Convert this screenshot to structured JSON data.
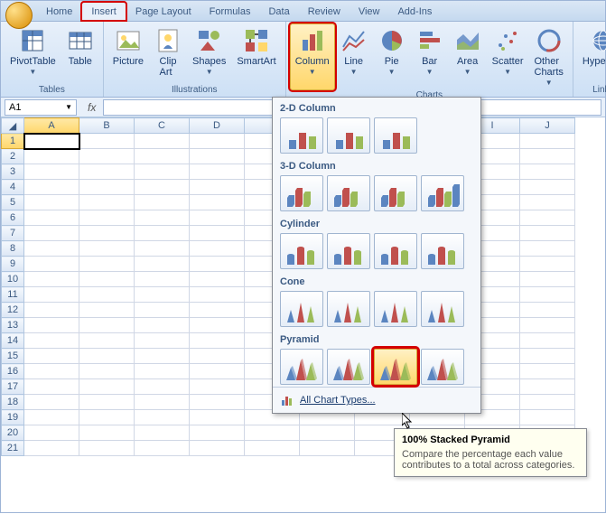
{
  "tabs": [
    "Home",
    "Insert",
    "Page Layout",
    "Formulas",
    "Data",
    "Review",
    "View",
    "Add-Ins"
  ],
  "active_tab": 1,
  "groups": {
    "tables": {
      "label": "Tables",
      "buttons": [
        {
          "label": "PivotTable",
          "dd": true
        },
        {
          "label": "Table"
        }
      ]
    },
    "illustrations": {
      "label": "Illustrations",
      "buttons": [
        {
          "label": "Picture"
        },
        {
          "label": "Clip\nArt"
        },
        {
          "label": "Shapes",
          "dd": true
        },
        {
          "label": "SmartArt"
        }
      ]
    },
    "charts": {
      "label": "Charts",
      "buttons": [
        {
          "label": "Column",
          "dd": true,
          "hl": true
        },
        {
          "label": "Line",
          "dd": true
        },
        {
          "label": "Pie",
          "dd": true
        },
        {
          "label": "Bar",
          "dd": true
        },
        {
          "label": "Area",
          "dd": true
        },
        {
          "label": "Scatter",
          "dd": true
        },
        {
          "label": "Other\nCharts",
          "dd": true
        }
      ]
    },
    "links": {
      "label": "Links",
      "buttons": [
        {
          "label": "Hyperlink"
        }
      ]
    }
  },
  "namebox": "A1",
  "columns": [
    "A",
    "B",
    "C",
    "D",
    "",
    "",
    "",
    "",
    "I",
    "J"
  ],
  "rows": [
    1,
    2,
    3,
    4,
    5,
    6,
    7,
    8,
    9,
    10,
    11,
    12,
    13,
    14,
    15,
    16,
    17,
    18,
    19,
    20,
    21
  ],
  "selected_cell": {
    "row": 0,
    "col": 0
  },
  "dropdown": {
    "sections": [
      {
        "title": "2-D Column",
        "items": 3
      },
      {
        "title": "3-D Column",
        "items": 4
      },
      {
        "title": "Cylinder",
        "items": 4
      },
      {
        "title": "Cone",
        "items": 4
      },
      {
        "title": "Pyramid",
        "items": 4
      }
    ],
    "hover": {
      "section": 4,
      "item": 2
    },
    "footer": "All Chart Types..."
  },
  "tooltip": {
    "title": "100% Stacked Pyramid",
    "body": "Compare the percentage each value contributes to a total across categories."
  },
  "colors": {
    "accent": "#3b5a82",
    "highlight": "#d40000",
    "bar1": "#5b85c0",
    "bar2": "#c0504d",
    "bar3": "#9bbb59"
  }
}
